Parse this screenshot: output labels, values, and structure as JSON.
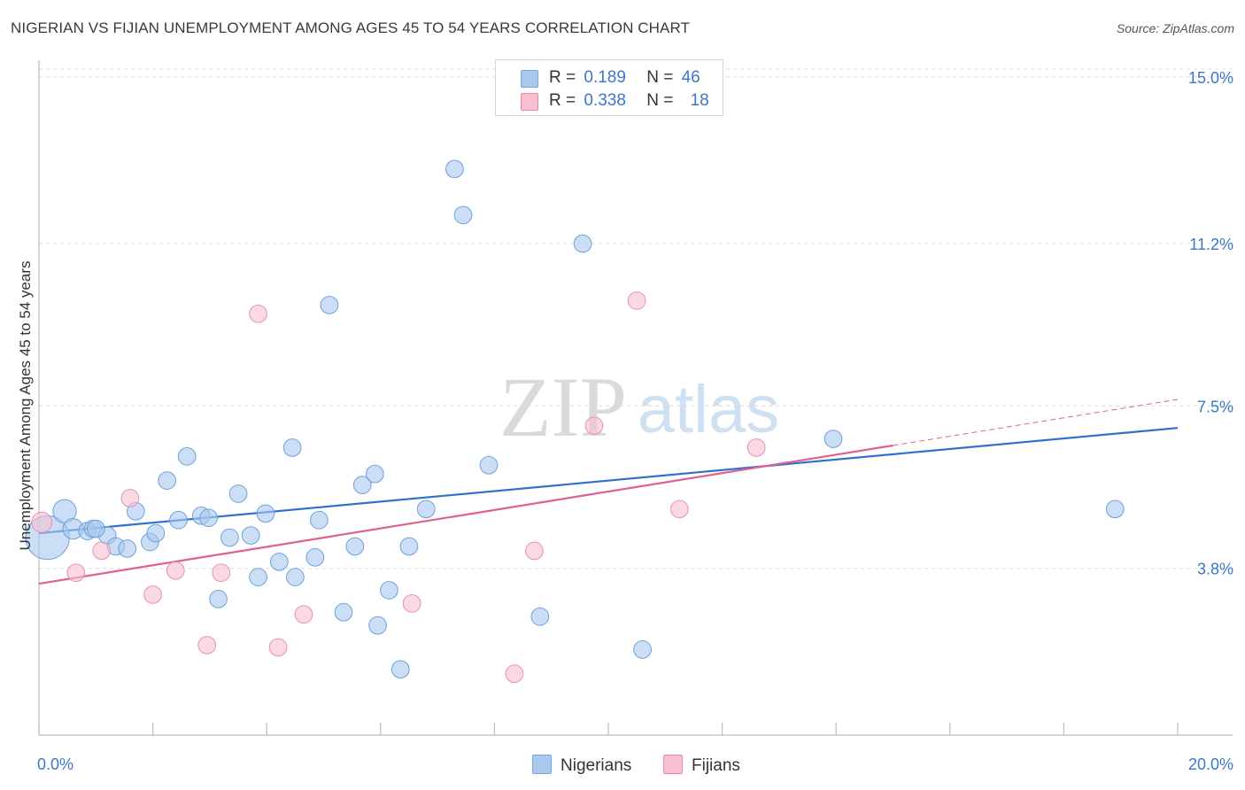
{
  "title": "NIGERIAN VS FIJIAN UNEMPLOYMENT AMONG AGES 45 TO 54 YEARS CORRELATION CHART",
  "source": "Source: ZipAtlas.com",
  "watermark": {
    "zip": "ZIP",
    "atlas": "atlas"
  },
  "legend_top": [
    {
      "name": "Nigerians",
      "r_label": "R =",
      "r": "0.189",
      "n_label": "N =",
      "n": "46",
      "color": "#a9c8ee",
      "border": "#7aa6dc"
    },
    {
      "name": "Fijians",
      "r_label": "R =",
      "r": "0.338",
      "n_label": "N =",
      "n": "18",
      "color": "#f7bfd0",
      "border": "#e98aa8"
    }
  ],
  "chart_data": {
    "type": "scatter",
    "title": "NIGERIAN VS FIJIAN UNEMPLOYMENT AMONG AGES 45 TO 54 YEARS CORRELATION CHART",
    "xlabel": "",
    "ylabel": "Unemployment Among Ages 45 to 54 years",
    "xlim": [
      0,
      20
    ],
    "ylim": [
      0,
      15.5
    ],
    "x_tick_labels": [
      "0.0%",
      "20.0%"
    ],
    "y_ticks": [
      3.8,
      7.5,
      11.2,
      15.0
    ],
    "y_tick_labels": [
      "3.8%",
      "7.5%",
      "11.2%",
      "15.0%"
    ],
    "grid": true,
    "series": [
      {
        "name": "Nigerians",
        "color": "#a9c8ee",
        "stroke": "#6d9fdb",
        "trend_color": "#2f6fcf",
        "trend": {
          "x0": 0.0,
          "y0": 4.6,
          "x1": 20.0,
          "y1": 7.0
        },
        "points": [
          [
            0.15,
            4.5,
            3
          ],
          [
            0.45,
            5.1,
            1.6
          ],
          [
            0.6,
            4.7,
            1.4
          ],
          [
            0.85,
            4.65,
            1.2
          ],
          [
            0.95,
            4.7,
            1.2
          ],
          [
            1.2,
            4.55,
            1.2
          ],
          [
            1.35,
            4.3,
            1.2
          ],
          [
            1.55,
            4.25,
            1.2
          ],
          [
            1.7,
            5.1,
            1.2
          ],
          [
            1.95,
            4.4,
            1.2
          ],
          [
            2.05,
            4.6,
            1.2
          ],
          [
            2.25,
            5.8,
            1.2
          ],
          [
            2.45,
            4.9,
            1.2
          ],
          [
            2.6,
            6.35,
            1.2
          ],
          [
            2.85,
            5.0,
            1.2
          ],
          [
            2.98,
            4.95,
            1.2
          ],
          [
            3.15,
            3.1,
            1.2
          ],
          [
            3.35,
            4.5,
            1.2
          ],
          [
            3.5,
            5.5,
            1.2
          ],
          [
            3.72,
            4.55,
            1.2
          ],
          [
            3.85,
            3.6,
            1.2
          ],
          [
            3.98,
            5.05,
            1.2
          ],
          [
            4.22,
            3.95,
            1.2
          ],
          [
            4.45,
            6.55,
            1.2
          ],
          [
            4.5,
            3.6,
            1.2
          ],
          [
            4.85,
            4.05,
            1.2
          ],
          [
            4.92,
            4.9,
            1.2
          ],
          [
            5.1,
            9.8,
            1.2
          ],
          [
            5.35,
            2.8,
            1.2
          ],
          [
            5.55,
            4.3,
            1.2
          ],
          [
            5.68,
            5.7,
            1.2
          ],
          [
            5.9,
            5.95,
            1.2
          ],
          [
            5.95,
            2.5,
            1.2
          ],
          [
            6.15,
            3.3,
            1.2
          ],
          [
            6.35,
            1.5,
            1.2
          ],
          [
            6.5,
            4.3,
            1.2
          ],
          [
            6.8,
            5.15,
            1.2
          ],
          [
            7.3,
            12.9,
            1.2
          ],
          [
            7.45,
            11.85,
            1.2
          ],
          [
            7.9,
            6.15,
            1.2
          ],
          [
            8.8,
            2.7,
            1.2
          ],
          [
            9.55,
            11.2,
            1.2
          ],
          [
            10.6,
            1.95,
            1.2
          ],
          [
            13.95,
            6.75,
            1.2
          ],
          [
            18.9,
            5.15,
            1.2
          ],
          [
            1.0,
            4.7,
            1.2
          ]
        ]
      },
      {
        "name": "Fijians",
        "color": "#f7bfd0",
        "stroke": "#e890ad",
        "trend_color": "#e0608f",
        "trend": {
          "x0": 0.0,
          "y0": 3.45,
          "x1": 15.0,
          "y1": 6.6
        },
        "trend_ext": {
          "x0": 15.0,
          "y0": 6.6,
          "x1": 20.0,
          "y1": 7.65
        },
        "points": [
          [
            0.05,
            4.85,
            1.4
          ],
          [
            0.65,
            3.7,
            1.2
          ],
          [
            1.1,
            4.2,
            1.2
          ],
          [
            1.6,
            5.4,
            1.2
          ],
          [
            2.0,
            3.2,
            1.2
          ],
          [
            2.4,
            3.75,
            1.2
          ],
          [
            2.95,
            2.05,
            1.2
          ],
          [
            3.2,
            3.7,
            1.2
          ],
          [
            3.85,
            9.6,
            1.2
          ],
          [
            4.2,
            2.0,
            1.2
          ],
          [
            4.65,
            2.75,
            1.2
          ],
          [
            6.55,
            3.0,
            1.2
          ],
          [
            8.35,
            1.4,
            1.2
          ],
          [
            8.7,
            4.2,
            1.2
          ],
          [
            9.75,
            7.05,
            1.2
          ],
          [
            10.5,
            9.9,
            1.2
          ],
          [
            11.25,
            5.15,
            1.2
          ],
          [
            12.6,
            6.55,
            1.2
          ]
        ]
      }
    ]
  }
}
